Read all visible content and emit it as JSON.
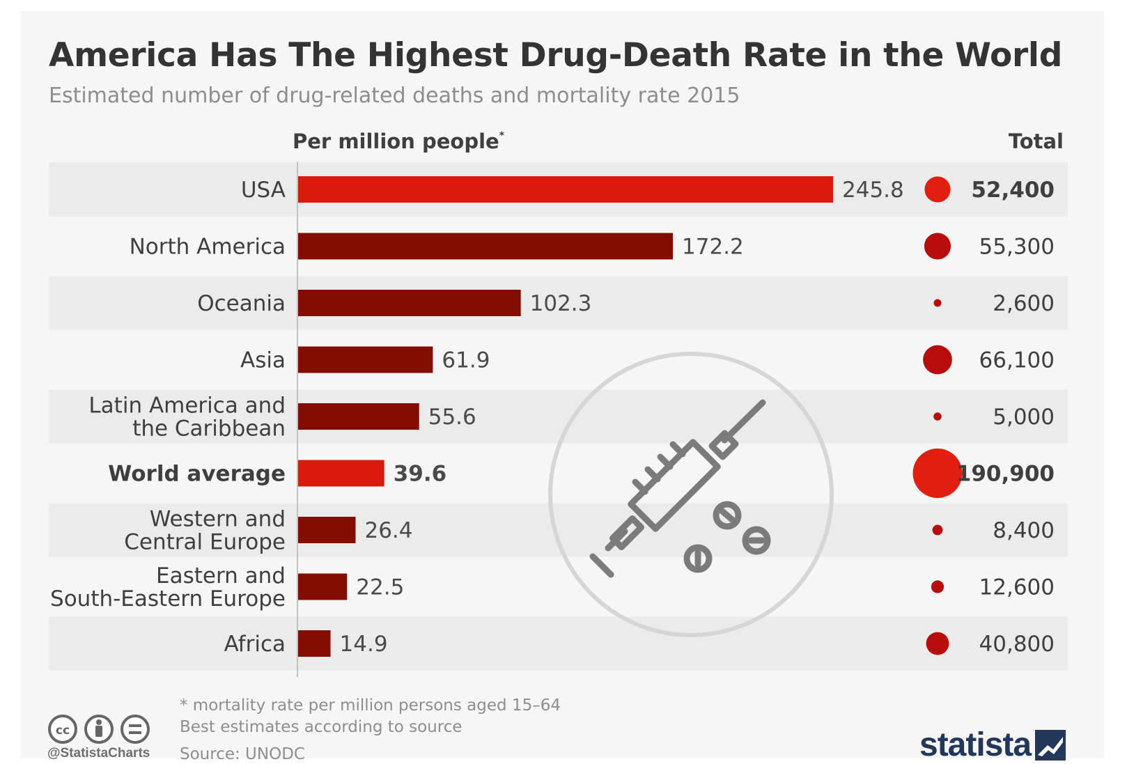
{
  "title": "America Has The Highest Drug-Death Rate in the World",
  "subtitle": "Estimated number of drug-related deaths and mortality rate 2015",
  "columns": {
    "rate": "Per million people",
    "rate_marker": "*",
    "total": "Total"
  },
  "colors": {
    "highlight_bar": "#d91a0c",
    "bar": "#840d02",
    "highlight_dot": "#e11e0f",
    "dot": "#b80d0d",
    "stripe": "#ebebeb"
  },
  "chart_data": {
    "type": "bar",
    "orientation": "horizontal",
    "categories": [
      "USA",
      "North America",
      "Oceania",
      "Asia",
      "Latin America and the Caribbean",
      "World average",
      "Western and Central Europe",
      "Eastern and South-Eastern Europe",
      "Africa"
    ],
    "category_lines": [
      [
        "USA"
      ],
      [
        "North America"
      ],
      [
        "Oceania"
      ],
      [
        "Asia"
      ],
      [
        "Latin America and",
        "the Caribbean"
      ],
      [
        "World average"
      ],
      [
        "Western and",
        "Central Europe"
      ],
      [
        "Eastern and",
        "South-Eastern Europe"
      ],
      [
        "Africa"
      ]
    ],
    "series": [
      {
        "name": "Per million people",
        "values": [
          245.8,
          172.2,
          102.3,
          61.9,
          55.6,
          39.6,
          26.4,
          22.5,
          14.9
        ],
        "labels": [
          "245.8",
          "172.2",
          "102.3",
          "61.9",
          "55.6",
          "39.6",
          "26.4",
          "22.5",
          "14.9"
        ]
      },
      {
        "name": "Total",
        "values": [
          52400,
          55300,
          2600,
          66100,
          5000,
          190900,
          8400,
          12600,
          40800
        ],
        "labels": [
          "52,400",
          "55,300",
          "2,600",
          "66,100",
          "5,000",
          "190,900",
          "8,400",
          "12,600",
          "40,800"
        ]
      }
    ],
    "highlighted": [
      "USA",
      "World average"
    ],
    "xlim": [
      0,
      245.8
    ],
    "grid": false,
    "legend": "none"
  },
  "footnotes": {
    "asterisk": "* mortality rate per million persons aged 15–64",
    "estimates": "Best estimates according to source",
    "source": "Source: UNODC"
  },
  "branding": {
    "handle": "@StatistaCharts",
    "logo": "statista",
    "license_icons": [
      "cc-icon",
      "by-icon",
      "nd-icon"
    ]
  },
  "illustration": "syringe-icon"
}
